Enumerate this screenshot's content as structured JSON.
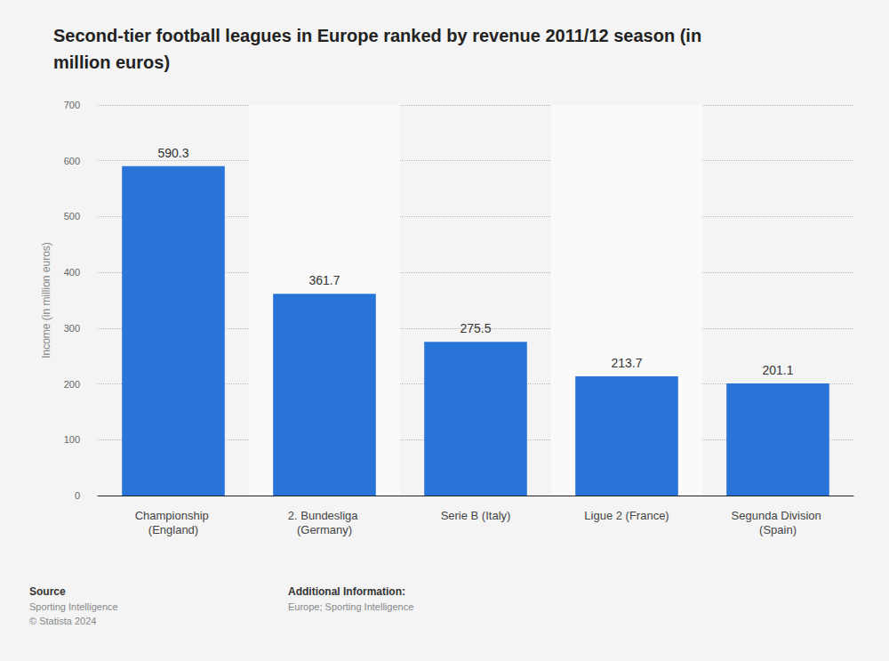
{
  "chart_data": {
    "type": "bar",
    "title": "Second-tier football leagues in Europe ranked by revenue 2011/12 season (in million euros)",
    "y_label": "Income (in million euros)",
    "categories": [
      "Championship (England)",
      "2. Bundesliga (Germany)",
      "Serie B (Italy)",
      "Ligue 2 (France)",
      "Segunda Division (Spain)"
    ],
    "values": [
      590.3,
      361.7,
      275.5,
      213.7,
      201.1
    ],
    "color": "#2874d9",
    "ylim": [
      0,
      700
    ],
    "yticks": [
      0,
      100,
      200,
      300,
      400,
      500,
      600,
      700
    ],
    "grid": true,
    "data_labels": true,
    "source": {
      "heading": "Source",
      "lines": [
        "Sporting Intelligence",
        "© Statista 2024"
      ]
    },
    "additional_info": {
      "heading": "Additional Information:",
      "lines": [
        "Europe; Sporting Intelligence"
      ]
    }
  }
}
